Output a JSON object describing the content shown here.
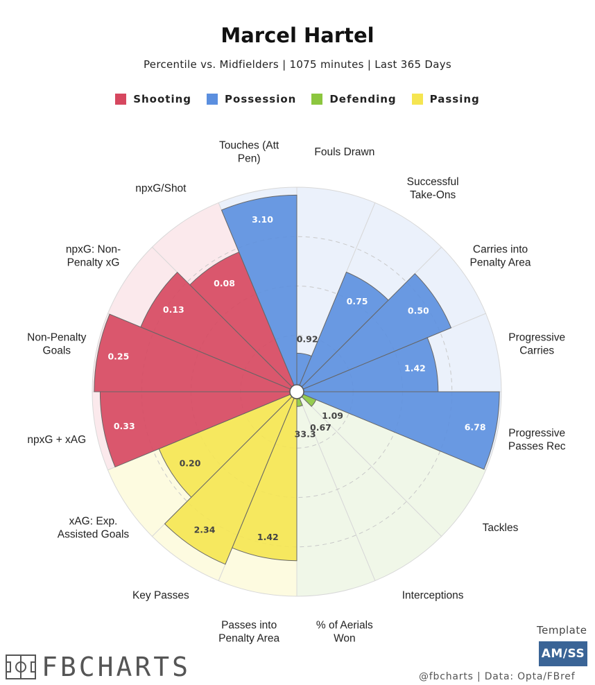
{
  "header": {
    "title": "Marcel Hartel",
    "subtitle": "Percentile vs. Midfielders | 1075 minutes | Last 365 Days"
  },
  "legend": [
    {
      "label": "Shooting",
      "color": "#d6475f"
    },
    {
      "label": "Possession",
      "color": "#5b8fdf"
    },
    {
      "label": "Defending",
      "color": "#8cc63f"
    },
    {
      "label": "Passing",
      "color": "#f5e551"
    }
  ],
  "chart_data": {
    "type": "polar-bar",
    "title": "Marcel Hartel",
    "subtitle": "Percentile vs. Midfielders | 1075 minutes | Last 365 Days",
    "rlim": [
      0,
      100
    ],
    "segments": [
      {
        "label": [
          "Fouls Drawn"
        ],
        "value": "0.92",
        "percentile": 16,
        "group": "Possession"
      },
      {
        "label": [
          "Successful",
          "Take-Ons"
        ],
        "value": "0.75",
        "percentile": 62,
        "group": "Possession"
      },
      {
        "label": [
          "Carries into",
          "Penalty Area"
        ],
        "value": "0.50",
        "percentile": 81,
        "group": "Possession"
      },
      {
        "label": [
          "Progressive",
          "Carries"
        ],
        "value": "1.42",
        "percentile": 68,
        "group": "Possession"
      },
      {
        "label": [
          "Progressive",
          "Passes Rec"
        ],
        "value": "6.78",
        "percentile": 99,
        "group": "Possession"
      },
      {
        "label": [
          "Tackles"
        ],
        "value": "1.09",
        "percentile": 7,
        "group": "Defending"
      },
      {
        "label": [
          "Interceptions"
        ],
        "value": "0.67",
        "percentile": 0,
        "group": "Defending"
      },
      {
        "label": [
          "% of Aerials",
          "Won"
        ],
        "value": "33.3",
        "percentile": 4,
        "group": "Defending"
      },
      {
        "label": [
          "Passes into",
          "Penalty Area"
        ],
        "value": "1.42",
        "percentile": 82,
        "group": "Passing"
      },
      {
        "label": [
          "Key Passes"
        ],
        "value": "2.34",
        "percentile": 91,
        "group": "Passing"
      },
      {
        "label": [
          "xAG: Exp.",
          "Assisted Goals"
        ],
        "value": "0.20",
        "percentile": 72,
        "group": "Passing"
      },
      {
        "label": [
          "npxG + xAG"
        ],
        "value": "0.33",
        "percentile": 96,
        "group": "Shooting"
      },
      {
        "label": [
          "Non-Penalty",
          "Goals"
        ],
        "value": "0.25",
        "percentile": 99,
        "group": "Shooting"
      },
      {
        "label": [
          "npxG: Non-",
          "Penalty xG"
        ],
        "value": "0.13",
        "percentile": 82,
        "group": "Shooting"
      },
      {
        "label": [
          "npxG/Shot"
        ],
        "value": "0.08",
        "percentile": 73,
        "group": "Shooting"
      },
      {
        "label": [
          "Touches (Att",
          "Pen)"
        ],
        "value": "3.10",
        "percentile": 96,
        "group": "Possession"
      }
    ]
  },
  "footer": {
    "brand": "FBCHARTS",
    "template_label": "Template",
    "template_badge": "AM/SS",
    "credit": "@fbcharts | Data: Opta/FBref"
  }
}
